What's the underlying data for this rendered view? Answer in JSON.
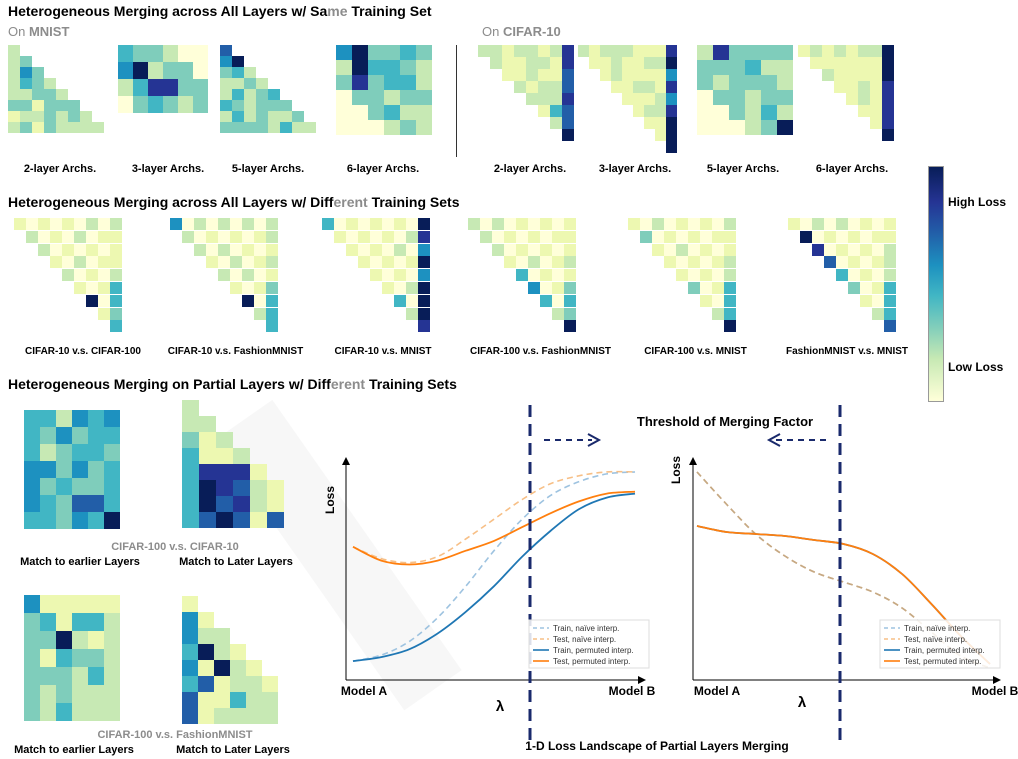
{
  "row1": {
    "title_prefix": "Heterogeneous Merging across All Layers w/ Sa",
    "title_gray": "me",
    "title_suffix": " Training Set",
    "left_prefix": "On ",
    "left_name": "MNIST",
    "right_prefix": "On ",
    "right_name": "CIFAR-10",
    "captions_left": [
      "2-layer Archs.",
      "3-layer Archs.",
      "5-layer Archs.",
      "6-layer Archs."
    ],
    "captions_right": [
      "2-layer Archs.",
      "3-layer Archs.",
      "5-layer Archs.",
      "6-layer Archs."
    ]
  },
  "row2": {
    "title_prefix": "Heterogeneous Merging across All Layers w/ Diff",
    "title_gray": "erent",
    "title_suffix": " Training Sets",
    "captions": [
      "CIFAR-10 v.s. CIFAR-100",
      "CIFAR-10 v.s. FashionMNIST",
      "CIFAR-10 v.s. MNIST",
      "CIFAR-100 v.s. FashionMNIST",
      "CIFAR-100 v.s. MNIST",
      "FashionMNIST v.s. MNIST"
    ]
  },
  "colorbar": {
    "high": "High Loss",
    "low": "Low Loss"
  },
  "row3": {
    "title_prefix": "Heterogeneous Merging on Partial Layers w/ Diff",
    "title_gray": "erent",
    "title_suffix": " Training Sets",
    "pair1": "CIFAR-100 v.s. CIFAR-10",
    "pair2": "CIFAR-100 v.s. FashionMNIST",
    "earlier": "Match to earlier Layers",
    "later": "Match to Later Layers"
  },
  "plots": {
    "threshold_title": "Threshold of Merging Factor",
    "bottom_title": "1-D Loss Landscape of Partial Layers Merging",
    "ylabel": "Loss",
    "xlabel": "λ",
    "model_a": "Model A",
    "model_b": "Model B",
    "legend": [
      "Train, naïve interp.",
      "Test, naïve interp.",
      "Train, permuted interp.",
      "Test, permuted interp."
    ]
  },
  "colors": {
    "low": "#ffffd9",
    "mid": "#41b6c4",
    "high": "#081d58",
    "train_perm": "#1f77b4",
    "test_perm": "#ff7f0e",
    "train_naive": "#9ec3e0",
    "test_naive": "#f7bf86",
    "dash_line": "#1a2a6c"
  },
  "chart_data": [
    {
      "type": "line",
      "title": "",
      "xlabel": "λ",
      "ylabel": "Loss",
      "x": [
        0,
        0.1,
        0.2,
        0.3,
        0.4,
        0.5,
        0.6,
        0.7,
        0.8,
        0.9,
        1.0
      ],
      "series": [
        {
          "name": "Train, naïve interp.",
          "values": [
            0.02,
            0.05,
            0.12,
            0.24,
            0.4,
            0.58,
            0.74,
            0.86,
            0.93,
            0.97,
            0.98
          ]
        },
        {
          "name": "Test, naïve interp.",
          "values": [
            0.6,
            0.54,
            0.52,
            0.55,
            0.64,
            0.74,
            0.84,
            0.92,
            0.96,
            0.98,
            0.98
          ]
        },
        {
          "name": "Train, permuted interp.",
          "values": [
            0.02,
            0.04,
            0.08,
            0.16,
            0.27,
            0.4,
            0.55,
            0.68,
            0.79,
            0.85,
            0.87
          ]
        },
        {
          "name": "Test, permuted interp.",
          "values": [
            0.6,
            0.53,
            0.51,
            0.53,
            0.58,
            0.63,
            0.7,
            0.77,
            0.83,
            0.87,
            0.88
          ]
        }
      ]
    },
    {
      "type": "line",
      "title": "",
      "xlabel": "λ",
      "ylabel": "Loss",
      "x": [
        0,
        0.1,
        0.2,
        0.3,
        0.4,
        0.5,
        0.6,
        0.7,
        0.8,
        0.9,
        1.0
      ],
      "series": [
        {
          "name": "Train, naïve interp.",
          "values": [
            0.98,
            0.82,
            0.67,
            0.56,
            0.48,
            0.43,
            0.38,
            0.3,
            0.18,
            0.06,
            0.0
          ]
        },
        {
          "name": "Test, naïve interp.",
          "values": [
            0.98,
            0.82,
            0.67,
            0.56,
            0.48,
            0.43,
            0.38,
            0.3,
            0.18,
            0.06,
            0.0
          ]
        },
        {
          "name": "Train, permuted interp.",
          "values": [
            0.71,
            0.68,
            0.67,
            0.66,
            0.64,
            0.62,
            0.57,
            0.47,
            0.32,
            0.16,
            0.02
          ]
        },
        {
          "name": "Test, permuted interp.",
          "values": [
            0.71,
            0.68,
            0.67,
            0.66,
            0.64,
            0.62,
            0.57,
            0.47,
            0.32,
            0.16,
            0.02
          ]
        }
      ]
    }
  ]
}
